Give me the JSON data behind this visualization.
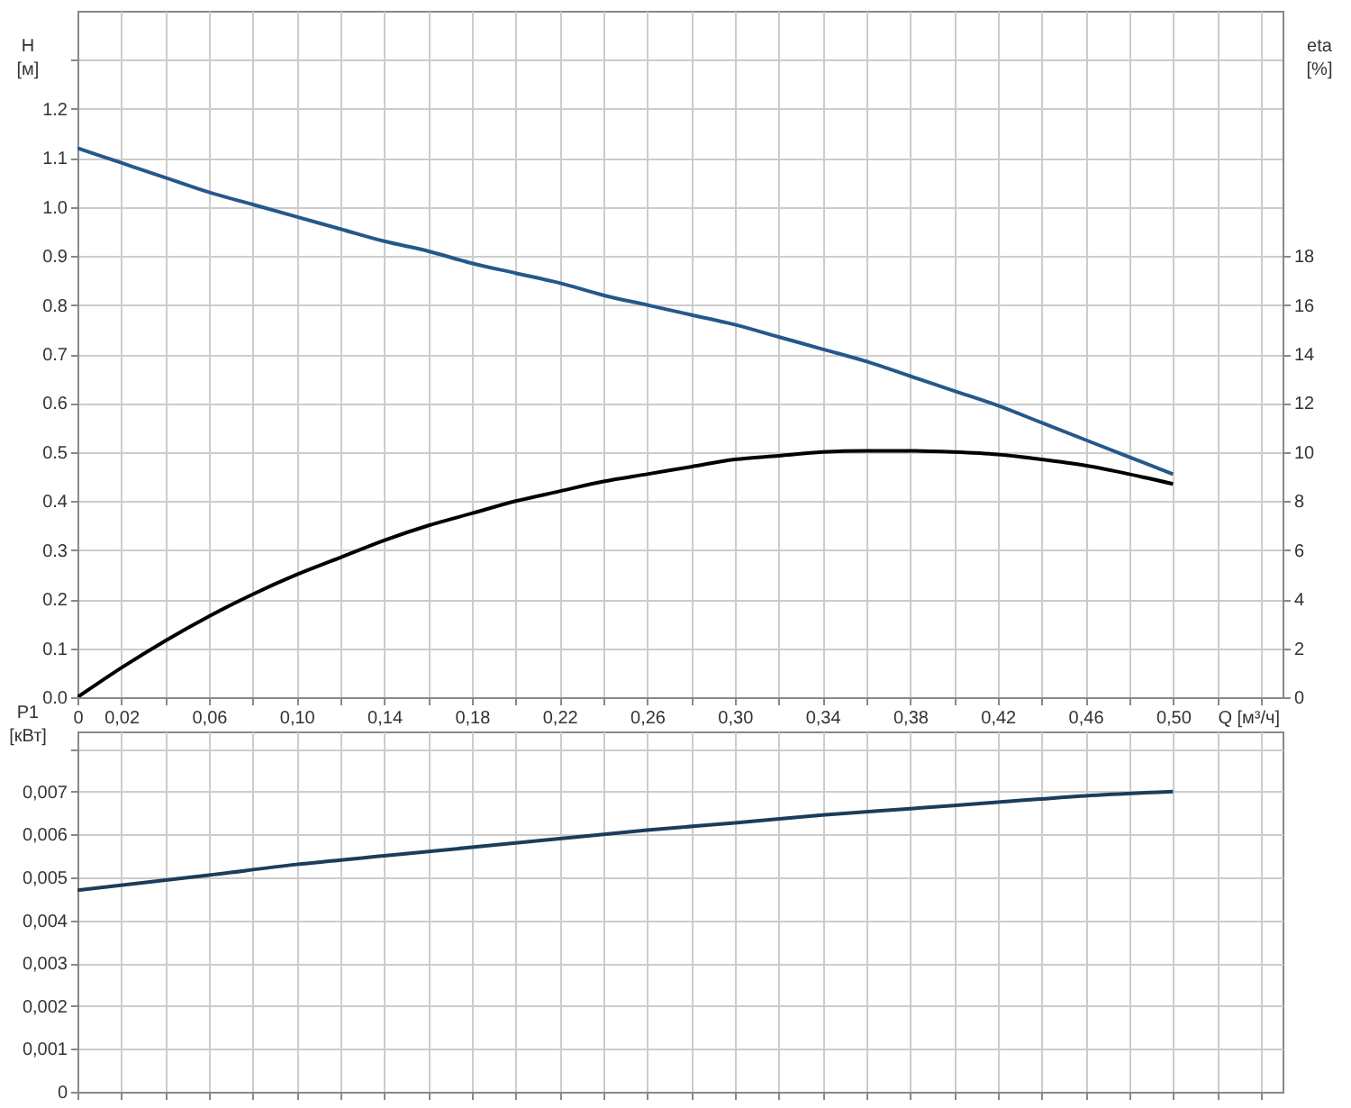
{
  "chart_data": [
    {
      "type": "line",
      "xlabel": "Q [м³/ч]",
      "ylabel": "H [м]",
      "y2label": "eta [%]",
      "grid": true,
      "xlim": [
        0,
        0.55
      ],
      "xticks": [
        0,
        {
          "value": 0.02,
          "label": "0,02"
        },
        {
          "value": 0.04,
          "label": null
        },
        {
          "value": 0.06,
          "label": "0,06"
        },
        {
          "value": 0.08,
          "label": null
        },
        {
          "value": 0.1,
          "label": "0,10"
        },
        {
          "value": 0.12,
          "label": null
        },
        {
          "value": 0.14,
          "label": "0,14"
        },
        {
          "value": 0.16,
          "label": null
        },
        {
          "value": 0.18,
          "label": "0,18"
        },
        {
          "value": 0.2,
          "label": null
        },
        {
          "value": 0.22,
          "label": "0,22"
        },
        {
          "value": 0.24,
          "label": null
        },
        {
          "value": 0.26,
          "label": "0,26"
        },
        {
          "value": 0.28,
          "label": null
        },
        {
          "value": 0.3,
          "label": "0,30"
        },
        {
          "value": 0.32,
          "label": null
        },
        {
          "value": 0.34,
          "label": "0,34"
        },
        {
          "value": 0.36,
          "label": null
        },
        {
          "value": 0.38,
          "label": "0,38"
        },
        {
          "value": 0.4,
          "label": null
        },
        {
          "value": 0.42,
          "label": "0,42"
        },
        {
          "value": 0.44,
          "label": null
        },
        {
          "value": 0.46,
          "label": "0,46"
        },
        {
          "value": 0.48,
          "label": null
        },
        {
          "value": 0.5,
          "label": "0,50"
        },
        {
          "value": 0.52,
          "label": null
        },
        {
          "value": 0.54,
          "label": null
        }
      ],
      "ylim": [
        0,
        1.4
      ],
      "yticks": [
        {
          "value": 0,
          "label": "0.0"
        },
        0.1,
        0.2,
        0.3,
        0.4,
        0.5,
        0.6,
        0.7,
        0.8,
        0.9,
        {
          "value": 1,
          "label": "1.0"
        },
        1.1,
        1.2,
        {
          "value": 1.3,
          "label": null
        }
      ],
      "y2lim": [
        0,
        28
      ],
      "y2ticks": [
        0,
        2,
        4,
        6,
        8,
        10,
        12,
        14,
        16,
        18
      ],
      "x": [
        0,
        0.02,
        0.04,
        0.06,
        0.08,
        0.1,
        0.12,
        0.14,
        0.16,
        0.18,
        0.2,
        0.22,
        0.24,
        0.26,
        0.28,
        0.3,
        0.32,
        0.34,
        0.36,
        0.38,
        0.4,
        0.42,
        0.44,
        0.46,
        0.48,
        0.5
      ],
      "series": [
        {
          "color": "#25588a",
          "values": [
            1.12,
            1.09,
            1.06,
            1.03,
            1.005,
            0.98,
            0.955,
            0.93,
            0.91,
            0.885,
            0.865,
            0.845,
            0.82,
            0.8,
            0.78,
            0.76,
            0.735,
            0.71,
            0.685,
            0.655,
            0.625,
            0.595,
            0.56,
            0.525,
            0.49,
            0.455
          ]
        },
        {
          "color": "#000000",
          "axis": "y2",
          "values": [
            0,
            1.2,
            2.3,
            3.3,
            4.2,
            5.0,
            5.7,
            6.4,
            7.0,
            7.5,
            8.0,
            8.4,
            8.8,
            9.1,
            9.4,
            9.7,
            9.85,
            10.0,
            10.05,
            10.05,
            10.0,
            9.9,
            9.7,
            9.45,
            9.1,
            8.7
          ]
        }
      ]
    },
    {
      "type": "line",
      "ylabel": "P1 [кВт]",
      "grid": true,
      "tick_labels": "y",
      "xlim": [
        0,
        0.55
      ],
      "xticks": [
        0,
        0.02,
        0.04,
        0.06,
        0.08,
        0.1,
        0.12,
        0.14,
        0.16,
        0.18,
        0.2,
        0.22,
        0.24,
        0.26,
        0.28,
        0.3,
        0.32,
        0.34,
        0.36,
        0.38,
        0.4,
        0.42,
        0.44,
        0.46,
        0.48,
        0.5,
        0.52,
        0.54
      ],
      "ylim": [
        0,
        0.0084
      ],
      "yticks": [
        0,
        {
          "value": 0.001,
          "label": "0,001"
        },
        {
          "value": 0.002,
          "label": "0,002"
        },
        {
          "value": 0.003,
          "label": "0,003"
        },
        {
          "value": 0.004,
          "label": "0,004"
        },
        {
          "value": 0.005,
          "label": "0,005"
        },
        {
          "value": 0.006,
          "label": "0,006"
        },
        {
          "value": 0.007,
          "label": "0,007"
        },
        {
          "value": 0.008,
          "label": null
        }
      ],
      "x": [
        0,
        0.06,
        0.1,
        0.14,
        0.18,
        0.22,
        0.26,
        0.3,
        0.34,
        0.38,
        0.42,
        0.46,
        0.5
      ],
      "series": [
        {
          "color": "#1a3d5c",
          "values": [
            0.0047,
            0.00505,
            0.0053,
            0.0055,
            0.0057,
            0.0059,
            0.0061,
            0.00627,
            0.00645,
            0.0066,
            0.00675,
            0.0069,
            0.007
          ]
        }
      ]
    }
  ]
}
